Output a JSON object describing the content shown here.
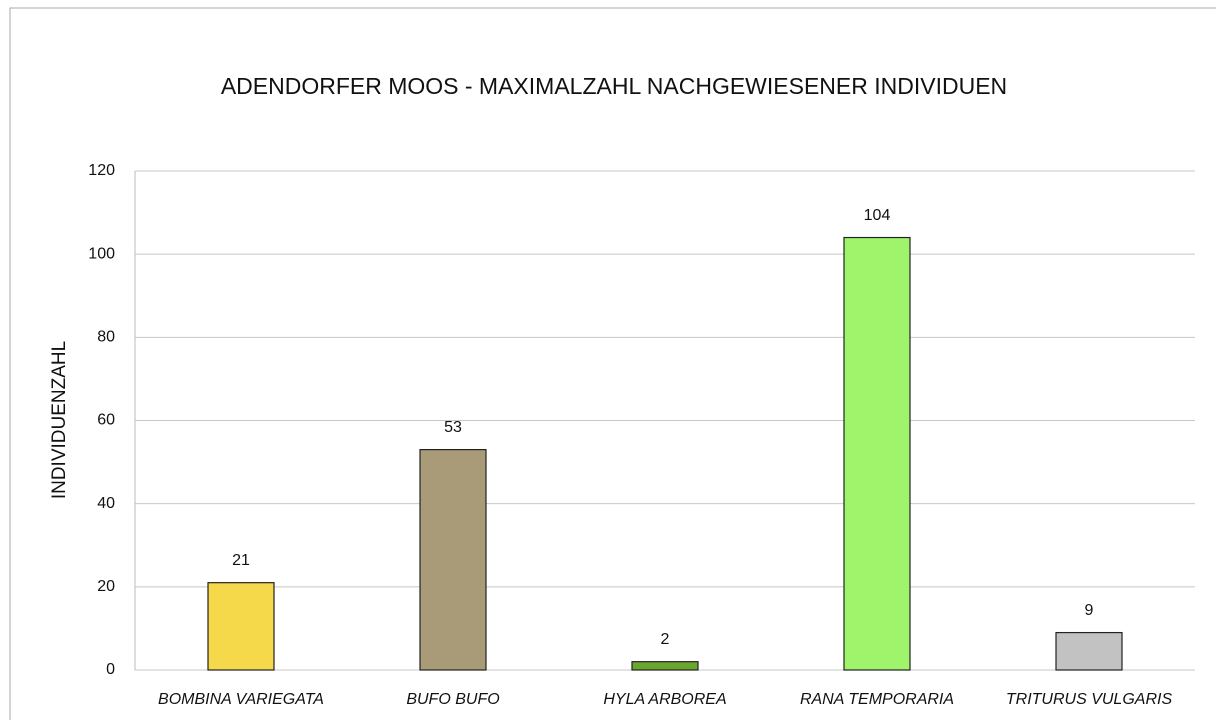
{
  "chart_data": {
    "type": "bar",
    "title": "ADENDORFER MOOS - MAXIMALZAHL NACHGEWIESENER INDIVIDUEN",
    "y_label": "INDIVIDUENZAHL",
    "categories": [
      "BOMBINA VARIEGATA",
      "BUFO BUFO",
      "HYLA ARBOREA",
      "RANA TEMPORARIA",
      "TRITURUS VULGARIS"
    ],
    "values": [
      21,
      53,
      2,
      104,
      9
    ],
    "colors": [
      "#f6d94b",
      "#a99a78",
      "#6aa72f",
      "#a0f46b",
      "#c2c2c2"
    ],
    "ylim": [
      0,
      120
    ],
    "yticks": [
      0,
      20,
      40,
      60,
      80,
      100,
      120
    ],
    "grid": true
  }
}
